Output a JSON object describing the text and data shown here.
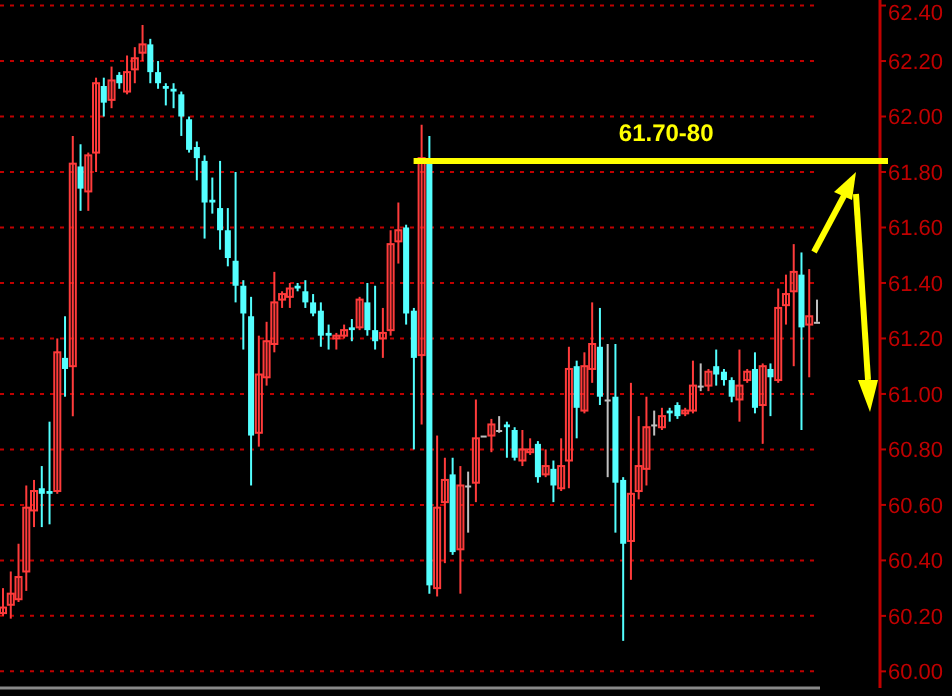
{
  "chart_data": {
    "type": "candlestick",
    "categories": [
      null,
      null,
      null,
      null,
      null,
      null,
      null,
      null,
      null,
      null,
      null,
      null,
      null,
      null,
      null,
      null,
      null,
      null,
      null,
      null,
      null,
      null,
      null,
      null,
      null,
      null,
      null,
      null,
      null,
      null,
      null,
      null,
      null,
      null,
      null,
      null,
      null,
      null,
      null,
      null,
      null,
      null,
      null,
      null,
      null,
      null,
      null,
      null,
      null,
      null,
      null,
      null,
      null,
      null,
      null,
      null,
      null,
      null,
      null,
      null,
      null,
      null,
      null,
      null,
      null,
      null,
      null,
      null,
      null,
      null,
      null,
      null,
      null,
      null,
      null,
      null,
      null,
      null,
      null,
      null,
      null,
      null,
      null,
      null,
      null,
      null,
      null,
      null,
      null,
      null,
      null,
      null,
      null,
      null,
      null,
      null,
      null,
      null,
      null,
      null,
      null,
      null,
      null,
      null,
      null,
      null
    ],
    "ohlc": [
      [
        60.21,
        60.3,
        60.2,
        60.23
      ],
      [
        60.24,
        60.36,
        60.19,
        60.28
      ],
      [
        60.26,
        60.46,
        60.25,
        60.34
      ],
      [
        60.36,
        60.67,
        60.29,
        60.59
      ],
      [
        60.58,
        60.69,
        60.52,
        60.65
      ],
      [
        60.66,
        60.74,
        60.52,
        60.64
      ],
      [
        60.65,
        60.9,
        60.53,
        60.64
      ],
      [
        60.65,
        61.2,
        60.64,
        61.15
      ],
      [
        61.13,
        61.28,
        60.99,
        61.09
      ],
      [
        61.1,
        61.93,
        60.92,
        61.83
      ],
      [
        61.82,
        61.9,
        61.66,
        61.74
      ],
      [
        61.73,
        61.87,
        61.66,
        61.86
      ],
      [
        61.87,
        62.14,
        61.8,
        62.12
      ],
      [
        62.11,
        62.14,
        62.0,
        62.05
      ],
      [
        62.06,
        62.18,
        62.03,
        62.13
      ],
      [
        62.15,
        62.16,
        62.1,
        62.12
      ],
      [
        62.09,
        62.22,
        62.08,
        62.16
      ],
      [
        62.17,
        62.25,
        62.12,
        62.21
      ],
      [
        62.23,
        62.33,
        62.2,
        62.26
      ],
      [
        62.26,
        62.28,
        62.12,
        62.16
      ],
      [
        62.16,
        62.2,
        62.1,
        62.12
      ],
      [
        62.11,
        62.12,
        62.04,
        62.1
      ],
      [
        62.1,
        62.12,
        62.03,
        62.09
      ],
      [
        62.08,
        62.09,
        61.93,
        62.0
      ],
      [
        61.99,
        62.0,
        61.87,
        61.88
      ],
      [
        61.89,
        61.91,
        61.77,
        61.85
      ],
      [
        61.84,
        61.86,
        61.56,
        61.69
      ],
      [
        61.7,
        61.78,
        61.65,
        61.69
      ],
      [
        61.67,
        61.84,
        61.52,
        61.59
      ],
      [
        61.59,
        61.67,
        61.46,
        61.49
      ],
      [
        61.48,
        61.8,
        61.33,
        61.39
      ],
      [
        61.39,
        61.41,
        61.16,
        61.29
      ],
      [
        61.28,
        61.35,
        60.67,
        60.85
      ],
      [
        60.86,
        61.21,
        60.81,
        61.07
      ],
      [
        61.06,
        61.26,
        61.03,
        61.19
      ],
      [
        61.18,
        61.44,
        61.15,
        61.33
      ],
      [
        61.34,
        61.37,
        61.31,
        61.36
      ],
      [
        61.35,
        61.4,
        61.31,
        61.38
      ],
      [
        61.39,
        61.4,
        61.37,
        61.38
      ],
      [
        61.37,
        61.41,
        61.31,
        61.33
      ],
      [
        61.33,
        61.36,
        61.28,
        61.29
      ],
      [
        61.3,
        61.33,
        61.17,
        61.21
      ],
      [
        61.22,
        61.25,
        61.16,
        61.21
      ],
      [
        61.2,
        61.22,
        61.16,
        61.21
      ],
      [
        61.21,
        61.25,
        61.2,
        61.23
      ],
      [
        61.24,
        61.27,
        61.19,
        61.23
      ],
      [
        61.24,
        61.35,
        61.23,
        61.34
      ],
      [
        61.33,
        61.4,
        61.21,
        61.23
      ],
      [
        61.23,
        61.39,
        61.16,
        61.19
      ],
      [
        61.2,
        61.31,
        61.13,
        61.22
      ],
      [
        61.23,
        61.59,
        61.21,
        61.54
      ],
      [
        61.55,
        61.69,
        61.47,
        61.59
      ],
      [
        61.6,
        61.61,
        61.25,
        61.29
      ],
      [
        61.3,
        61.31,
        60.8,
        61.13
      ],
      [
        61.14,
        61.97,
        60.89,
        61.85
      ],
      [
        61.84,
        61.93,
        60.28,
        60.31
      ],
      [
        60.3,
        60.85,
        60.27,
        60.59
      ],
      [
        60.61,
        60.77,
        60.39,
        60.69
      ],
      [
        60.71,
        60.77,
        60.42,
        60.43
      ],
      [
        60.44,
        60.74,
        60.28,
        60.67
      ],
      [
        60.67,
        60.72,
        60.5,
        60.67
      ],
      [
        60.68,
        60.98,
        60.61,
        60.84
      ],
      [
        60.85,
        60.85,
        60.85,
        60.85
      ],
      [
        60.85,
        60.91,
        60.79,
        60.89
      ],
      [
        60.87,
        60.92,
        60.86,
        60.87
      ],
      [
        60.89,
        60.9,
        60.77,
        60.88
      ],
      [
        60.87,
        60.88,
        60.76,
        60.77
      ],
      [
        60.76,
        60.87,
        60.74,
        60.8
      ],
      [
        60.79,
        60.84,
        60.78,
        60.8
      ],
      [
        60.82,
        60.83,
        60.68,
        60.7
      ],
      [
        60.71,
        60.8,
        60.7,
        60.74
      ],
      [
        60.73,
        60.76,
        60.61,
        60.67
      ],
      [
        60.66,
        60.84,
        60.65,
        60.74
      ],
      [
        60.76,
        61.17,
        60.66,
        61.09
      ],
      [
        61.1,
        61.12,
        60.84,
        60.95
      ],
      [
        60.94,
        61.15,
        60.93,
        61.1
      ],
      [
        61.09,
        61.33,
        61.04,
        61.18
      ],
      [
        61.17,
        61.31,
        60.96,
        60.99
      ],
      [
        60.98,
        61.18,
        60.7,
        60.98
      ],
      [
        60.99,
        61.18,
        60.5,
        60.68
      ],
      [
        60.69,
        60.7,
        60.11,
        60.46
      ],
      [
        60.47,
        61.04,
        60.33,
        60.64
      ],
      [
        60.65,
        60.92,
        60.62,
        60.74
      ],
      [
        60.73,
        60.99,
        60.67,
        60.88
      ],
      [
        60.89,
        60.94,
        60.85,
        60.89
      ],
      [
        60.88,
        60.95,
        60.87,
        60.92
      ],
      [
        60.94,
        60.95,
        60.9,
        60.93
      ],
      [
        60.96,
        60.97,
        60.91,
        60.92
      ],
      [
        60.93,
        60.95,
        60.92,
        60.94
      ],
      [
        60.94,
        61.12,
        60.93,
        61.03
      ],
      [
        61.03,
        61.11,
        61.01,
        61.03
      ],
      [
        61.03,
        61.09,
        61.01,
        61.08
      ],
      [
        61.1,
        61.16,
        61.03,
        61.07
      ],
      [
        61.08,
        61.09,
        61.03,
        61.05
      ],
      [
        61.05,
        61.06,
        60.97,
        60.99
      ],
      [
        60.98,
        61.16,
        60.9,
        61.03
      ],
      [
        61.05,
        61.09,
        61.04,
        61.08
      ],
      [
        61.09,
        61.15,
        60.93,
        60.95
      ],
      [
        60.96,
        61.11,
        60.82,
        61.1
      ],
      [
        61.09,
        61.11,
        60.92,
        61.06
      ],
      [
        61.05,
        61.38,
        61.04,
        61.31
      ],
      [
        61.32,
        61.43,
        61.25,
        61.36
      ],
      [
        61.37,
        61.54,
        61.1,
        61.44
      ],
      [
        61.43,
        61.51,
        60.87,
        61.24
      ],
      [
        61.25,
        61.45,
        61.06,
        61.28
      ],
      [
        61.26,
        61.34,
        61.26,
        61.26
      ]
    ],
    "colors": [
      "#ff3b3b",
      "#ff3b3b",
      "#ff3b3b",
      "#ff3b3b",
      "#ff3b3b",
      "#54ffff",
      "#54ffff",
      "#ff3b3b",
      "#54ffff",
      "#ff3b3b",
      "#54ffff",
      "#ff3b3b",
      "#ff3b3b",
      "#54ffff",
      "#ff3b3b",
      "#54ffff",
      "#ff3b3b",
      "#ff3b3b",
      "#ff3b3b",
      "#54ffff",
      "#54ffff",
      "#54ffff",
      "#54ffff",
      "#54ffff",
      "#54ffff",
      "#54ffff",
      "#54ffff",
      "#54ffff",
      "#54ffff",
      "#54ffff",
      "#54ffff",
      "#54ffff",
      "#54ffff",
      "#ff3b3b",
      "#ff3b3b",
      "#ff3b3b",
      "#ff3b3b",
      "#ff3b3b",
      "#54ffff",
      "#54ffff",
      "#54ffff",
      "#54ffff",
      "#54ffff",
      "#ff3b3b",
      "#ff3b3b",
      "#54ffff",
      "#ff3b3b",
      "#54ffff",
      "#54ffff",
      "#ff3b3b",
      "#ff3b3b",
      "#ff3b3b",
      "#54ffff",
      "#54ffff",
      "#ff3b3b",
      "#54ffff",
      "#ff3b3b",
      "#ff3b3b",
      "#54ffff",
      "#ff3b3b",
      "#c0c0c0",
      "#ff3b3b",
      "#c0c0c0",
      "#ff3b3b",
      "#c0c0c0",
      "#54ffff",
      "#54ffff",
      "#ff3b3b",
      "#ff3b3b",
      "#54ffff",
      "#ff3b3b",
      "#54ffff",
      "#ff3b3b",
      "#ff3b3b",
      "#54ffff",
      "#ff3b3b",
      "#ff3b3b",
      "#54ffff",
      "#c0c0c0",
      "#54ffff",
      "#54ffff",
      "#ff3b3b",
      "#ff3b3b",
      "#ff3b3b",
      "#c0c0c0",
      "#ff3b3b",
      "#54ffff",
      "#54ffff",
      "#ff3b3b",
      "#ff3b3b",
      "#c0c0c0",
      "#ff3b3b",
      "#54ffff",
      "#54ffff",
      "#54ffff",
      "#ff3b3b",
      "#ff3b3b",
      "#54ffff",
      "#ff3b3b",
      "#54ffff",
      "#ff3b3b",
      "#ff3b3b",
      "#ff3b3b",
      "#54ffff",
      "#ff3b3b",
      "#c0c0c0"
    ],
    "ylim": [
      59.94,
      62.42
    ],
    "yticks": [
      {
        "value": 60,
        "label": "60.00"
      },
      {
        "value": 60.2,
        "label": "60.20"
      },
      {
        "value": 60.4,
        "label": "60.40"
      },
      {
        "value": 60.6,
        "label": "60.60"
      },
      {
        "value": 60.8,
        "label": "60.80"
      },
      {
        "value": 61,
        "label": "61.00"
      },
      {
        "value": 61.2,
        "label": "61.20"
      },
      {
        "value": 61.4,
        "label": "61.40"
      },
      {
        "value": 61.6,
        "label": "61.60"
      },
      {
        "value": 61.8,
        "label": "61.80"
      },
      {
        "value": 62,
        "label": "62.00"
      },
      {
        "value": 62.2,
        "label": "62.20"
      },
      {
        "value": 62.4,
        "label": "62.40"
      }
    ],
    "grid": "y",
    "tick_labels": "y",
    "annotations": [
      "61.70-80"
    ],
    "ref_lines": [
      {
        "axis": "y",
        "value": 61.84,
        "color": "#ffff00"
      }
    ]
  }
}
